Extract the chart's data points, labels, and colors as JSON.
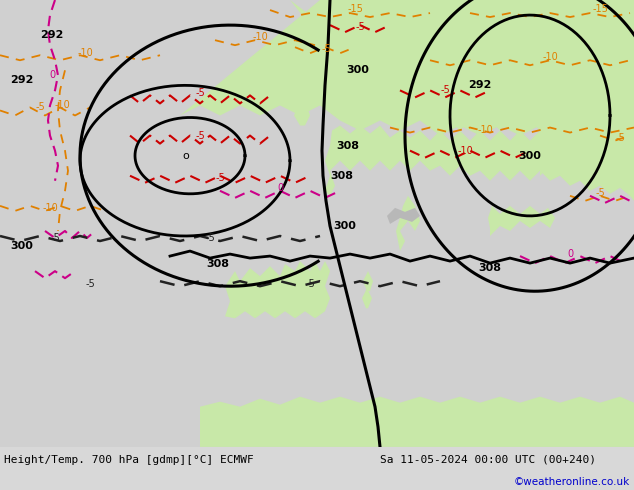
{
  "title_left": "Height/Temp. 700 hPa [gdmp][°C] ECMWF",
  "title_right": "Sa 11-05-2024 00:00 UTC (00+240)",
  "watermark": "©weatheronline.co.uk",
  "watermark_color": "#0000cc",
  "bg_color": "#d8d8d8",
  "land_color": "#c8e8a8",
  "sea_color": "#d8d8d8",
  "mountain_color": "#b0b0b0"
}
